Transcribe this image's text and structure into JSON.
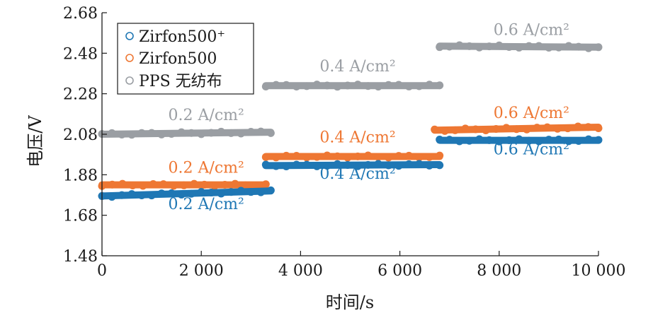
{
  "chart_data": {
    "type": "scatter",
    "xlabel": "时间/s",
    "ylabel": "电压/V",
    "xlim": [
      0,
      10000
    ],
    "ylim": [
      1.48,
      2.68
    ],
    "xticks": [
      0,
      2000,
      4000,
      6000,
      8000,
      10000
    ],
    "xtick_labels": [
      "0",
      "2 000",
      "4 000",
      "6 000",
      "8 000",
      "10 000"
    ],
    "yticks": [
      1.48,
      1.68,
      1.88,
      2.08,
      2.28,
      2.48,
      2.68
    ],
    "ytick_labels": [
      "1.48",
      "1.68",
      "1.88",
      "2.08",
      "2.28",
      "2.48",
      "2.68"
    ],
    "grid": false,
    "legend_position": "top-left",
    "series": [
      {
        "name": "Zirfon500⁺",
        "color": "#1f77b4",
        "segments": [
          {
            "x_start": 0,
            "x_end": 3400,
            "y_start": 1.775,
            "y_end": 1.8
          },
          {
            "x_start": 3300,
            "x_end": 6800,
            "y_start": 1.925,
            "y_end": 1.93
          },
          {
            "x_start": 6800,
            "x_end": 10000,
            "y_start": 2.05,
            "y_end": 2.05
          }
        ]
      },
      {
        "name": "Zirfon500",
        "color": "#ee7733",
        "segments": [
          {
            "x_start": 0,
            "x_end": 3300,
            "y_start": 1.83,
            "y_end": 1.83
          },
          {
            "x_start": 3300,
            "x_end": 6800,
            "y_start": 1.97,
            "y_end": 1.97
          },
          {
            "x_start": 6700,
            "x_end": 10000,
            "y_start": 2.1,
            "y_end": 2.115
          }
        ]
      },
      {
        "name": "PPS 无纺布",
        "color": "#9a9ea3",
        "segments": [
          {
            "x_start": 0,
            "x_end": 3400,
            "y_start": 2.08,
            "y_end": 2.09
          },
          {
            "x_start": 3300,
            "x_end": 6800,
            "y_start": 2.32,
            "y_end": 2.32
          },
          {
            "x_start": 6800,
            "x_end": 10000,
            "y_start": 2.515,
            "y_end": 2.51
          }
        ]
      }
    ],
    "annotations": [
      {
        "text": "0.2 A/cm²",
        "series": "PPS 无纺布",
        "x": 2100,
        "y": 2.15
      },
      {
        "text": "0.4 A/cm²",
        "series": "PPS 无纺布",
        "x": 5150,
        "y": 2.39
      },
      {
        "text": "0.6 A/cm²",
        "series": "PPS 无纺布",
        "x": 8650,
        "y": 2.57
      },
      {
        "text": "0.2 A/cm²",
        "series": "Zirfon500",
        "x": 2100,
        "y": 1.89
      },
      {
        "text": "0.4 A/cm²",
        "series": "Zirfon500",
        "x": 5150,
        "y": 2.04
      },
      {
        "text": "0.6 A/cm²",
        "series": "Zirfon500",
        "x": 8650,
        "y": 2.16
      },
      {
        "text": "0.2 A/cm²",
        "series": "Zirfon500⁺",
        "x": 2100,
        "y": 1.71
      },
      {
        "text": "0.4 A/cm²",
        "series": "Zirfon500⁺",
        "x": 5150,
        "y": 1.86
      },
      {
        "text": "0.6 A/cm²",
        "series": "Zirfon500⁺",
        "x": 8650,
        "y": 1.98
      }
    ]
  }
}
